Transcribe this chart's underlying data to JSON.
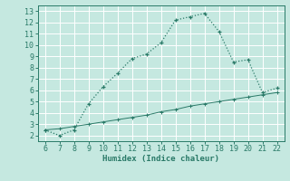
{
  "x_upper": [
    6,
    7,
    8,
    9,
    10,
    11,
    12,
    13,
    14,
    15,
    16,
    17,
    18,
    19,
    20,
    21,
    22
  ],
  "y_upper": [
    2.5,
    2.0,
    2.5,
    4.8,
    6.3,
    7.5,
    8.8,
    9.2,
    10.2,
    12.2,
    12.5,
    12.8,
    11.2,
    8.5,
    8.7,
    5.8,
    6.2
  ],
  "x_lower": [
    6,
    7,
    8,
    9,
    10,
    11,
    12,
    13,
    14,
    15,
    16,
    17,
    18,
    19,
    20,
    21,
    22
  ],
  "y_lower": [
    2.5,
    2.6,
    2.8,
    3.0,
    3.2,
    3.4,
    3.6,
    3.8,
    4.1,
    4.3,
    4.6,
    4.8,
    5.0,
    5.2,
    5.4,
    5.6,
    5.8
  ],
  "line_color": "#2a7a68",
  "bg_color": "#c5e8e0",
  "grid_color": "#b0d8ce",
  "xlabel": "Humidex (Indice chaleur)",
  "xlim": [
    5.5,
    22.5
  ],
  "ylim": [
    1.5,
    13.5
  ],
  "xticks": [
    6,
    7,
    8,
    9,
    10,
    11,
    12,
    13,
    14,
    15,
    16,
    17,
    18,
    19,
    20,
    21,
    22
  ],
  "yticks": [
    2,
    3,
    4,
    5,
    6,
    7,
    8,
    9,
    10,
    11,
    12,
    13
  ],
  "label_fontsize": 6.5,
  "tick_fontsize": 6.0
}
